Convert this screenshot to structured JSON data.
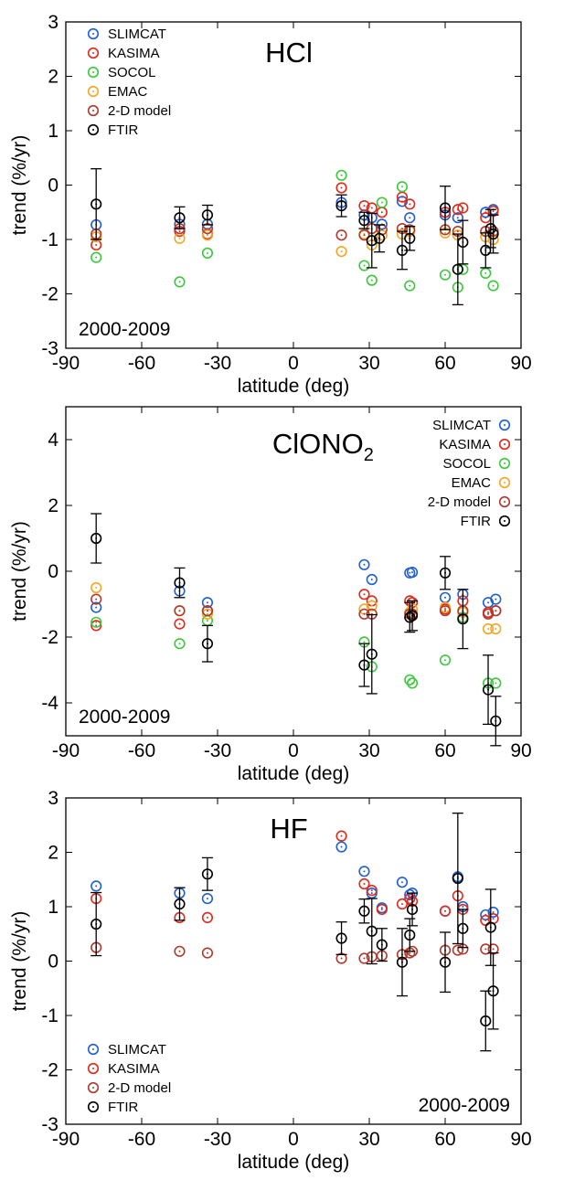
{
  "chart_data": [
    {
      "type": "scatter",
      "title": "HCl",
      "xlabel": "latitude (deg)",
      "ylabel": "trend (%/yr)",
      "xlim": [
        -90,
        90
      ],
      "ylim": [
        -3,
        3
      ],
      "xticks": [
        -90,
        -60,
        -30,
        0,
        30,
        60,
        90
      ],
      "yticks": [
        -3,
        -2,
        -1,
        0,
        1,
        2,
        3
      ],
      "period_label": "2000-2009",
      "legend_position": "top-left",
      "series": [
        {
          "name": "SLIMCAT",
          "color": "#1f5fd6",
          "points": [
            [
              -78,
              -0.73
            ],
            [
              -45,
              -0.72
            ],
            [
              -34,
              -0.72
            ],
            [
              19,
              -0.32
            ],
            [
              28,
              -0.55
            ],
            [
              31,
              -0.6
            ],
            [
              35,
              -0.72
            ],
            [
              43,
              -0.3
            ],
            [
              46,
              -0.6
            ],
            [
              60,
              -0.55
            ],
            [
              65,
              -0.6
            ],
            [
              76,
              -0.5
            ],
            [
              79,
              -0.45
            ]
          ]
        },
        {
          "name": "KASIMA",
          "color": "#e02a1c",
          "points": [
            [
              -78,
              -1.1
            ],
            [
              -45,
              -0.85
            ],
            [
              -34,
              -0.9
            ],
            [
              19,
              -0.05
            ],
            [
              28,
              -0.38
            ],
            [
              31,
              -0.42
            ],
            [
              35,
              -0.5
            ],
            [
              43,
              -0.22
            ],
            [
              46,
              -0.35
            ],
            [
              60,
              -0.5
            ],
            [
              65,
              -0.45
            ],
            [
              67,
              -0.42
            ],
            [
              76,
              -0.6
            ],
            [
              79,
              -0.48
            ]
          ]
        },
        {
          "name": "SOCOL",
          "color": "#3cc83c",
          "points": [
            [
              -78,
              -1.33
            ],
            [
              -45,
              -1.78
            ],
            [
              -34,
              -1.25
            ],
            [
              19,
              0.18
            ],
            [
              28,
              -1.48
            ],
            [
              31,
              -1.75
            ],
            [
              35,
              -0.32
            ],
            [
              43,
              -0.03
            ],
            [
              46,
              -1.85
            ],
            [
              60,
              -1.65
            ],
            [
              65,
              -1.88
            ],
            [
              67,
              -1.55
            ],
            [
              76,
              -1.62
            ],
            [
              79,
              -1.85
            ]
          ]
        },
        {
          "name": "EMAC",
          "color": "#f5a623",
          "points": [
            [
              -78,
              -0.95
            ],
            [
              -45,
              -0.98
            ],
            [
              -34,
              -0.92
            ],
            [
              19,
              -1.22
            ],
            [
              28,
              -0.9
            ],
            [
              31,
              -1.1
            ],
            [
              35,
              -0.92
            ],
            [
              43,
              -0.9
            ],
            [
              46,
              -0.85
            ],
            [
              60,
              -0.88
            ],
            [
              65,
              -0.92
            ],
            [
              76,
              -0.95
            ],
            [
              79,
              -1.0
            ]
          ]
        },
        {
          "name": "2-D model",
          "color": "#b03a2e",
          "points": [
            [
              -78,
              -0.9
            ],
            [
              -45,
              -0.8
            ],
            [
              -34,
              -0.8
            ],
            [
              19,
              -0.92
            ],
            [
              28,
              -0.92
            ],
            [
              31,
              -0.8
            ],
            [
              35,
              -0.82
            ],
            [
              43,
              -0.8
            ],
            [
              46,
              -0.82
            ],
            [
              60,
              -0.82
            ],
            [
              65,
              -0.85
            ],
            [
              76,
              -0.85
            ],
            [
              79,
              -0.85
            ]
          ]
        },
        {
          "name": "FTIR",
          "color": "#000000",
          "points": [
            [
              -78,
              -0.35,
              0.65
            ],
            [
              -45,
              -0.6,
              0.2
            ],
            [
              -34,
              -0.55,
              0.18
            ],
            [
              19,
              -0.38,
              0.2
            ],
            [
              28,
              -0.65,
              0.15
            ],
            [
              31,
              -1.02,
              0.5
            ],
            [
              34,
              -0.98,
              0.25
            ],
            [
              43,
              -1.2,
              0.35
            ],
            [
              46,
              -0.98,
              0.22
            ],
            [
              60,
              -0.42,
              0.4
            ],
            [
              65,
              -1.55,
              0.65
            ],
            [
              67,
              -1.05,
              0.4
            ],
            [
              76,
              -1.2,
              0.32
            ],
            [
              78,
              -0.8,
              0.35
            ],
            [
              79,
              -0.9,
              0.35
            ]
          ]
        }
      ]
    },
    {
      "type": "scatter",
      "title": "ClONO",
      "title_sub": "2",
      "xlabel": "latitude (deg)",
      "ylabel": "trend (%/yr)",
      "xlim": [
        -90,
        90
      ],
      "ylim": [
        -5,
        5
      ],
      "xticks": [
        -90,
        -60,
        -30,
        0,
        30,
        60,
        90
      ],
      "yticks": [
        -4,
        -2,
        0,
        2,
        4
      ],
      "period_label": "2000-2009",
      "legend_position": "top-right",
      "series": [
        {
          "name": "SLIMCAT",
          "color": "#1f5fd6",
          "points": [
            [
              -78,
              -1.1
            ],
            [
              -45,
              -0.6
            ],
            [
              -34,
              -0.95
            ],
            [
              28,
              0.2
            ],
            [
              31,
              -0.25
            ],
            [
              46,
              -0.05
            ],
            [
              47,
              -0.03
            ],
            [
              60,
              -0.8
            ],
            [
              67,
              -0.7
            ],
            [
              77,
              -0.95
            ],
            [
              80,
              -0.85
            ]
          ]
        },
        {
          "name": "KASIMA",
          "color": "#e02a1c",
          "points": [
            [
              -78,
              -1.65
            ],
            [
              -45,
              -1.6
            ],
            [
              -34,
              -1.2
            ],
            [
              28,
              -0.7
            ],
            [
              31,
              -0.9
            ],
            [
              46,
              -0.9
            ],
            [
              47,
              -0.95
            ],
            [
              60,
              -1.15
            ],
            [
              67,
              -0.9
            ],
            [
              77,
              -1.25
            ],
            [
              80,
              -1.2
            ]
          ]
        },
        {
          "name": "SOCOL",
          "color": "#3cc83c",
          "points": [
            [
              -78,
              -1.55
            ],
            [
              -45,
              -2.2
            ],
            [
              -34,
              -1.5
            ],
            [
              28,
              -2.15
            ],
            [
              31,
              -2.9
            ],
            [
              46,
              -3.3
            ],
            [
              47,
              -3.4
            ],
            [
              60,
              -2.7
            ],
            [
              67,
              -1.4
            ],
            [
              77,
              -3.4
            ],
            [
              80,
              -3.4
            ]
          ]
        },
        {
          "name": "EMAC",
          "color": "#f5a623",
          "points": [
            [
              -78,
              -0.5
            ],
            [
              -45,
              -1.2
            ],
            [
              -34,
              -1.3
            ],
            [
              28,
              -1.15
            ],
            [
              31,
              -1.05
            ],
            [
              46,
              -1.25
            ],
            [
              47,
              -1.15
            ],
            [
              60,
              -1.1
            ],
            [
              67,
              -1.25
            ],
            [
              77,
              -1.75
            ],
            [
              80,
              -1.75
            ]
          ]
        },
        {
          "name": "2-D model",
          "color": "#b03a2e",
          "points": [
            [
              -78,
              -0.85
            ],
            [
              -45,
              -1.2
            ],
            [
              -34,
              -1.2
            ],
            [
              28,
              -1.3
            ],
            [
              31,
              -1.3
            ],
            [
              46,
              -1.3
            ],
            [
              47,
              -1.3
            ],
            [
              60,
              -1.2
            ],
            [
              67,
              -1.2
            ],
            [
              77,
              -1.3
            ],
            [
              80,
              -1.2
            ]
          ]
        },
        {
          "name": "FTIR",
          "color": "#000000",
          "points": [
            [
              -78,
              1.0,
              0.75
            ],
            [
              -45,
              -0.35,
              0.45
            ],
            [
              -34,
              -2.2,
              0.55
            ],
            [
              28,
              -2.85,
              0.65
            ],
            [
              31,
              -2.52,
              1.2
            ],
            [
              46,
              -1.4,
              0.45
            ],
            [
              47,
              -1.35,
              0.45
            ],
            [
              60,
              -0.05,
              0.5
            ],
            [
              67,
              -1.45,
              0.9
            ],
            [
              77,
              -3.6,
              1.05
            ],
            [
              80,
              -4.55,
              0.75
            ]
          ]
        }
      ]
    },
    {
      "type": "scatter",
      "title": "HF",
      "xlabel": "latitude (deg)",
      "ylabel": "trend (%/yr)",
      "xlim": [
        -90,
        90
      ],
      "ylim": [
        -3,
        3
      ],
      "xticks": [
        -90,
        -60,
        -30,
        0,
        30,
        60,
        90
      ],
      "yticks": [
        -3,
        -2,
        -1,
        0,
        1,
        2,
        3
      ],
      "period_label": "2000-2009",
      "legend_position": "bottom-left",
      "series": [
        {
          "name": "SLIMCAT",
          "color": "#1f5fd6",
          "points": [
            [
              -78,
              1.38
            ],
            [
              -45,
              1.25
            ],
            [
              -34,
              1.15
            ],
            [
              19,
              2.1
            ],
            [
              28,
              1.65
            ],
            [
              31,
              1.25
            ],
            [
              35,
              0.98
            ],
            [
              43,
              1.45
            ],
            [
              46,
              1.22
            ],
            [
              47,
              1.25
            ],
            [
              60,
              0.92
            ],
            [
              65,
              1.55
            ],
            [
              67,
              1.0
            ],
            [
              76,
              0.85
            ],
            [
              79,
              0.9
            ]
          ]
        },
        {
          "name": "KASIMA",
          "color": "#e02a1c",
          "points": [
            [
              -78,
              1.15
            ],
            [
              -45,
              0.8
            ],
            [
              -34,
              0.8
            ],
            [
              19,
              2.3
            ],
            [
              28,
              1.42
            ],
            [
              31,
              1.3
            ],
            [
              35,
              0.95
            ],
            [
              43,
              1.05
            ],
            [
              46,
              1.15
            ],
            [
              47,
              1.1
            ],
            [
              60,
              0.92
            ],
            [
              65,
              1.2
            ],
            [
              67,
              0.95
            ],
            [
              76,
              0.75
            ],
            [
              79,
              0.78
            ]
          ]
        },
        {
          "name": "2-D model",
          "color": "#b03a2e",
          "points": [
            [
              -78,
              0.25
            ],
            [
              -45,
              0.18
            ],
            [
              -34,
              0.15
            ],
            [
              19,
              0.05
            ],
            [
              28,
              0.05
            ],
            [
              31,
              0.08
            ],
            [
              35,
              0.1
            ],
            [
              43,
              0.12
            ],
            [
              46,
              0.15
            ],
            [
              47,
              0.18
            ],
            [
              60,
              0.2
            ],
            [
              65,
              0.2
            ],
            [
              67,
              0.22
            ],
            [
              76,
              0.22
            ],
            [
              79,
              0.22
            ]
          ]
        },
        {
          "name": "FTIR",
          "color": "#000000",
          "points": [
            [
              -78,
              0.68,
              0.58
            ],
            [
              -45,
              1.05,
              0.3
            ],
            [
              -34,
              1.6,
              0.3
            ],
            [
              19,
              0.42,
              0.3
            ],
            [
              28,
              0.92,
              0.22
            ],
            [
              31,
              0.55,
              0.6
            ],
            [
              35,
              0.3,
              0.3
            ],
            [
              43,
              -0.02,
              0.62
            ],
            [
              46,
              0.48,
              0.3
            ],
            [
              47,
              0.95,
              0.3
            ],
            [
              60,
              -0.02,
              0.55
            ],
            [
              65,
              1.52,
              1.2
            ],
            [
              67,
              0.6,
              0.35
            ],
            [
              76,
              -1.1,
              0.55
            ],
            [
              78,
              0.62,
              0.7
            ],
            [
              79,
              -0.55,
              0.7
            ]
          ]
        }
      ]
    }
  ]
}
